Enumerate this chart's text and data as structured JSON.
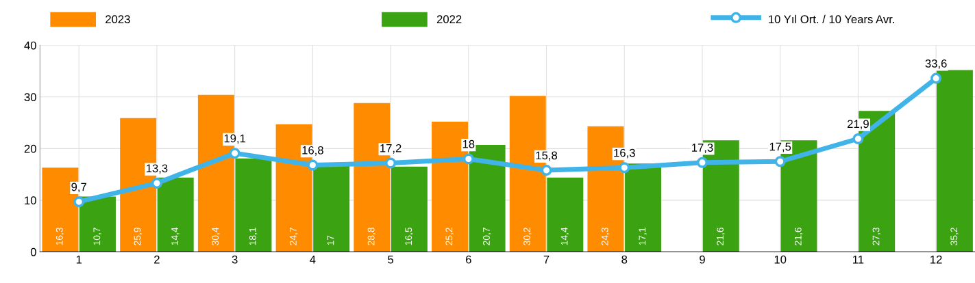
{
  "chart_data": {
    "type": "bar",
    "categories": [
      "1",
      "2",
      "3",
      "4",
      "5",
      "6",
      "7",
      "8",
      "9",
      "10",
      "11",
      "12"
    ],
    "series": [
      {
        "name": "2023",
        "color": "#ff8c00",
        "values": [
          16.3,
          25.9,
          30.4,
          24.7,
          28.8,
          25.2,
          30.2,
          24.3,
          0,
          0,
          0,
          0
        ],
        "value_labels": [
          "16,3",
          "25,9",
          "30,4",
          "24,7",
          "28,8",
          "25,2",
          "30,2",
          "24,3",
          null,
          null,
          null,
          null
        ]
      },
      {
        "name": "2022",
        "color": "#3ba312",
        "values": [
          10.7,
          14.4,
          18.1,
          17,
          16.5,
          20.7,
          14.4,
          17.1,
          21.6,
          21.6,
          27.3,
          35.2
        ],
        "value_labels": [
          "10,7",
          "14,4",
          "18,1",
          "17",
          "16,5",
          "20,7",
          "14,4",
          "17,1",
          "21,6",
          "21,6",
          "27,3",
          "35,2"
        ]
      },
      {
        "name": "10 Yıl Ort. / 10 Years Avr.",
        "type": "line",
        "color": "#40b4e8",
        "marker": "circle",
        "values": [
          9.7,
          13.3,
          19.1,
          16.8,
          17.2,
          18,
          15.8,
          16.3,
          17.3,
          17.5,
          21.9,
          33.6
        ],
        "value_labels": [
          "9,7",
          "13,3",
          "19,1",
          "16,8",
          "17,2",
          "18",
          "15,8",
          "16,3",
          "17,3",
          "17,5",
          "21,9",
          "33,6"
        ]
      }
    ],
    "ylim": [
      0,
      40
    ],
    "yticks": [
      0,
      10,
      20,
      30,
      40
    ],
    "grid": true,
    "legend": "top"
  }
}
